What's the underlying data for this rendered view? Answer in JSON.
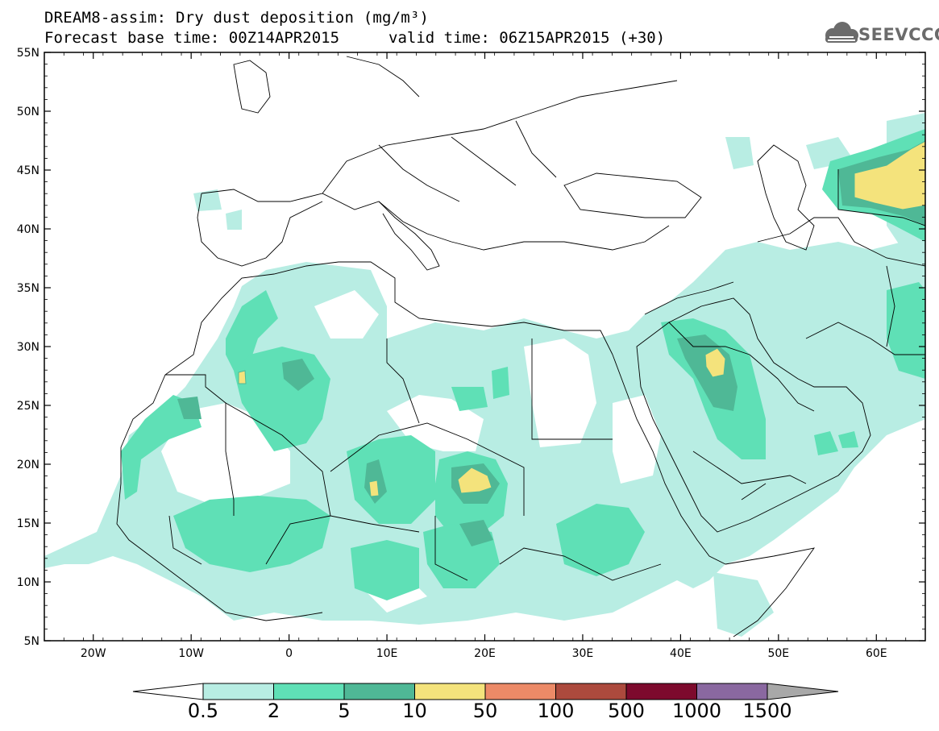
{
  "title": {
    "line1": "DREAM8-assim: Dry dust deposition (mg/m³)",
    "base_time": "Forecast base time: 00Z14APR2015",
    "valid_time": "valid time: 06Z15APR2015 (+30)"
  },
  "logo": {
    "text": "SEEVCCC",
    "icon": "cloud-icon",
    "color": "#6b6b6b"
  },
  "map": {
    "lon_range": [
      -25,
      65
    ],
    "lat_range": [
      5,
      55
    ],
    "lat_ticks": [
      "55N",
      "50N",
      "45N",
      "40N",
      "35N",
      "30N",
      "25N",
      "20N",
      "15N",
      "10N",
      "5N"
    ],
    "lon_ticks": [
      "20W",
      "10W",
      "0",
      "10E",
      "20E",
      "30E",
      "40E",
      "50E",
      "60E"
    ]
  },
  "colorbar": {
    "labels": [
      "0.5",
      "2",
      "5",
      "10",
      "50",
      "100",
      "500",
      "1000",
      "1500"
    ],
    "colors": [
      "#ffffff",
      "#b8ede3",
      "#5fe0b6",
      "#4fb896",
      "#f4e37c",
      "#ec8a67",
      "#ac4a3d",
      "#7d0a2d",
      "#8a68a0",
      "#a8a8a8"
    ]
  }
}
